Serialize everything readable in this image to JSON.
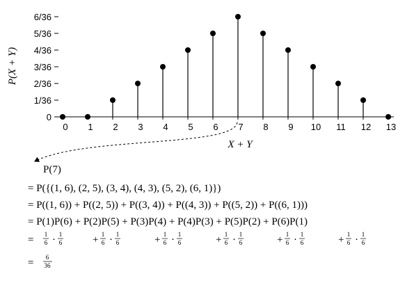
{
  "chart_data": {
    "type": "stem",
    "x_label": "X + Y",
    "y_label": "P(X + Y)",
    "x": [
      0,
      1,
      2,
      3,
      4,
      5,
      6,
      7,
      8,
      9,
      10,
      11,
      12,
      13
    ],
    "values": [
      0,
      0,
      0.027777777777777776,
      0.05555555555555555,
      0.08333333333333333,
      0.1111111111111111,
      0.1388888888888889,
      0.16666666666666666,
      0.1388888888888889,
      0.1111111111111111,
      0.08333333333333333,
      0.05555555555555555,
      0.027777777777777776,
      0
    ],
    "color": "#000000",
    "xlim": [
      0,
      13
    ],
    "xticks": [
      0,
      1,
      2,
      3,
      4,
      5,
      6,
      7,
      8,
      9,
      10,
      11,
      12,
      13
    ],
    "ylim": [
      0,
      0.16666666666666666
    ],
    "yticks": [
      0,
      {
        "value": 0.027777777777777776,
        "label": "1/36"
      },
      {
        "value": 0.05555555555555555,
        "label": "2/36"
      },
      {
        "value": 0.08333333333333333,
        "label": "3/36"
      },
      {
        "value": 0.1111111111111111,
        "label": "4/36"
      },
      {
        "value": 0.1388888888888889,
        "label": "5/36"
      },
      {
        "value": 0.16666666666666666,
        "label": "6/36"
      }
    ],
    "grid": false
  },
  "derivation": {
    "start": "P(7)",
    "steps": [
      "= P({(1, 6), (2, 5), (3, 4), (4, 3), (5, 2), (6, 1)})",
      "= P((1, 6)) + P((2, 5)) + P((3, 4)) + P((4, 3)) + P((5, 2)) + P((6, 1)))",
      "= P(1)P(6) + P(2)P(5) + P(3)P(4) + P(4)P(3) + P(5)P(2) + P(6)P(1)"
    ],
    "products": {
      "eq": "=",
      "plus": "+",
      "dot": "·",
      "terms": [
        [
          "1",
          "6",
          "1",
          "6"
        ],
        [
          "1",
          "6",
          "1",
          "6"
        ],
        [
          "1",
          "6",
          "1",
          "6"
        ],
        [
          "1",
          "6",
          "1",
          "6"
        ],
        [
          "1",
          "6",
          "1",
          "6"
        ],
        [
          "1",
          "6",
          "1",
          "6"
        ]
      ]
    },
    "result": {
      "eq": "=",
      "num": "6",
      "den": "36"
    }
  }
}
